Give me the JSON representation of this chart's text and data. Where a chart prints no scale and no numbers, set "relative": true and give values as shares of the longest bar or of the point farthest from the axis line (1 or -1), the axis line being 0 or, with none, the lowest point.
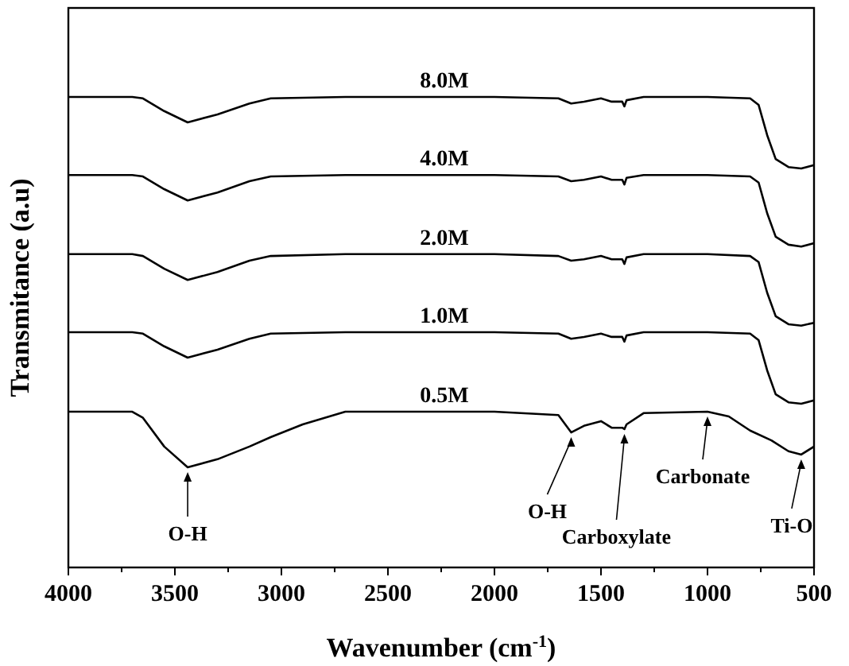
{
  "chart_data": {
    "type": "line",
    "relative": true,
    "xlabel": "Wavenumber (cm$^{-1}$)",
    "ylabel": "Transmitance (a.u)",
    "xlim": [
      4000,
      500
    ],
    "xticks": [
      4000,
      {
        "value": 3750,
        "label": null
      },
      3500,
      {
        "value": 3250,
        "label": null
      },
      3000,
      {
        "value": 2750,
        "label": null
      },
      2500,
      {
        "value": 2250,
        "label": null
      },
      2000,
      {
        "value": 1750,
        "label": null
      },
      1500,
      {
        "value": 1250,
        "label": null
      },
      1000,
      {
        "value": 750,
        "label": null
      },
      500
    ],
    "tick_labels": "x",
    "grid": false,
    "marker": "none",
    "line_style": "solid",
    "x": [
      4000,
      3700,
      3650,
      3550,
      3440,
      3300,
      3150,
      3050,
      2700,
      2000,
      1700,
      1640,
      1580,
      1500,
      1450,
      1400,
      1390,
      1380,
      1300,
      1000,
      800,
      760,
      720,
      680,
      620,
      560,
      500
    ],
    "series": [
      {
        "name": "8.0M",
        "color": "#000000",
        "values": [
          1,
          1,
          0.997,
          0.97,
          0.946,
          0.963,
          0.986,
          0.997,
          1,
          1,
          0.997,
          0.986,
          0.99,
          0.997,
          0.99,
          0.99,
          0.98,
          0.993,
          1,
          1,
          0.997,
          0.983,
          0.919,
          0.868,
          0.851,
          0.848,
          0.855
        ]
      },
      {
        "name": "4.0M",
        "color": "#000000",
        "values": [
          0.834,
          0.834,
          0.831,
          0.804,
          0.78,
          0.797,
          0.821,
          0.831,
          0.834,
          0.834,
          0.831,
          0.821,
          0.824,
          0.831,
          0.824,
          0.824,
          0.814,
          0.828,
          0.834,
          0.834,
          0.831,
          0.818,
          0.753,
          0.703,
          0.686,
          0.682,
          0.689
        ]
      },
      {
        "name": "2.0M",
        "color": "#000000",
        "values": [
          0.666,
          0.666,
          0.662,
          0.635,
          0.611,
          0.628,
          0.652,
          0.662,
          0.666,
          0.666,
          0.662,
          0.652,
          0.655,
          0.662,
          0.655,
          0.655,
          0.645,
          0.659,
          0.666,
          0.666,
          0.662,
          0.649,
          0.584,
          0.534,
          0.517,
          0.514,
          0.52
        ]
      },
      {
        "name": "1.0M",
        "color": "#000000",
        "values": [
          0.5,
          0.5,
          0.497,
          0.47,
          0.446,
          0.463,
          0.486,
          0.497,
          0.5,
          0.5,
          0.497,
          0.486,
          0.49,
          0.497,
          0.49,
          0.49,
          0.48,
          0.493,
          0.5,
          0.5,
          0.497,
          0.483,
          0.419,
          0.368,
          0.351,
          0.348,
          0.355
        ]
      },
      {
        "name": "0.5M",
        "color": "#000000",
        "x": [
          4000,
          3700,
          3650,
          3550,
          3440,
          3300,
          3150,
          3050,
          2900,
          2700,
          2000,
          1700,
          1640,
          1580,
          1500,
          1450,
          1400,
          1390,
          1380,
          1300,
          1000,
          900,
          800,
          700,
          620,
          560,
          500
        ],
        "values": [
          0.331,
          0.331,
          0.318,
          0.257,
          0.213,
          0.23,
          0.257,
          0.277,
          0.304,
          0.331,
          0.331,
          0.324,
          0.287,
          0.301,
          0.311,
          0.297,
          0.297,
          0.294,
          0.304,
          0.328,
          0.331,
          0.321,
          0.291,
          0.27,
          0.247,
          0.24,
          0.257
        ]
      }
    ],
    "annotations": [
      {
        "text": "O-H",
        "x": 3440,
        "y": 0.213
      },
      {
        "text": "O-H",
        "x": 1640,
        "y": 0.287
      },
      {
        "text": "Carboxylate",
        "x": 1390,
        "y": 0.294
      },
      {
        "text": "Carbonate",
        "x": 1000,
        "y": 0.331
      },
      {
        "text": "Ti-O",
        "x": 560,
        "y": 0.24
      }
    ]
  }
}
